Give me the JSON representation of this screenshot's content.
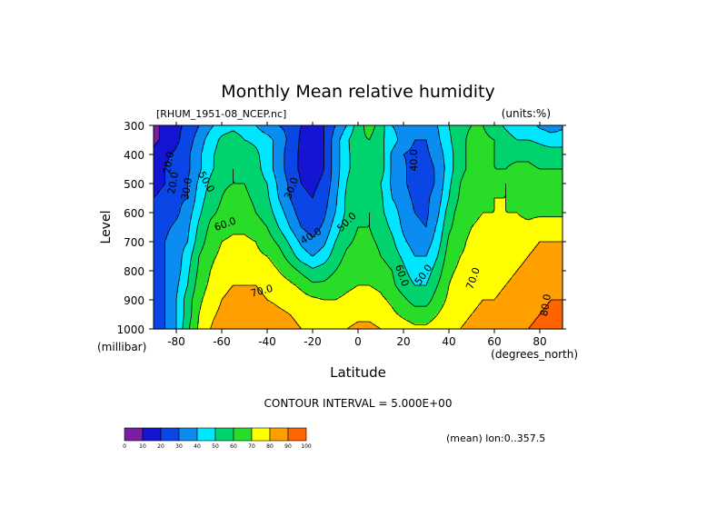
{
  "chart_data": {
    "type": "contour",
    "title": "Monthly Mean relative humidity",
    "dataset_label": "[RHUM_1951-08_NCEP.nc]",
    "units_label": "(units:%)",
    "xlabel": "Latitude",
    "x_units": "(degrees_north)",
    "ylabel": "Level",
    "y_units": "(millibar)",
    "xlim": [
      -90,
      90
    ],
    "ylim": [
      1000,
      300
    ],
    "x_ticks": [
      -80,
      -60,
      -40,
      -20,
      0,
      20,
      40,
      60,
      80
    ],
    "x_tick_labels": [
      "-80",
      "-60",
      "-40",
      "-20",
      "0",
      "20",
      "40",
      "60",
      "80"
    ],
    "y_ticks": [
      300,
      400,
      500,
      600,
      700,
      800,
      900,
      1000
    ],
    "y_tick_labels": [
      "300",
      "400",
      "500",
      "600",
      "700",
      "800",
      "900",
      "1000"
    ],
    "contour_interval_text": "CONTOUR INTERVAL = 5.000E+00",
    "mean_text": "(mean) lon:0..357.5",
    "levels": [
      0,
      10,
      20,
      30,
      40,
      50,
      60,
      70,
      80,
      90,
      100
    ],
    "level_labels": [
      "0",
      "10",
      "20",
      "30",
      "40",
      "50",
      "60",
      "70",
      "80",
      "90",
      "100"
    ],
    "colors": [
      "#7a1ea6",
      "#1414d2",
      "#0a46e6",
      "#0a8cf0",
      "#00e6ff",
      "#00d26e",
      "#28dc28",
      "#ffff00",
      "#ffa000",
      "#ff6400",
      "#ff0000"
    ],
    "contour_labels": [
      "20.0",
      "20.0",
      "30.0",
      "50.0",
      "60.0",
      "70.0",
      "30.0",
      "40.0",
      "50.0",
      "40.0",
      "60.0",
      "50.0",
      "70.0",
      "80.0"
    ],
    "lat": [
      -90,
      -85,
      -80,
      -75,
      -70,
      -65,
      -60,
      -55,
      -50,
      -45,
      -40,
      -35,
      -30,
      -25,
      -20,
      -15,
      -10,
      -5,
      0,
      5,
      10,
      15,
      20,
      25,
      30,
      35,
      40,
      45,
      50,
      55,
      60,
      65,
      70,
      75,
      80,
      85,
      90
    ],
    "lev": [
      300,
      350,
      400,
      450,
      500,
      550,
      600,
      650,
      700,
      750,
      800,
      850,
      900,
      950,
      1000
    ],
    "values": [
      [
        8,
        12,
        18,
        22,
        30,
        38,
        45,
        47,
        45,
        40,
        32,
        30,
        28,
        20,
        18,
        20,
        30,
        40,
        55,
        65,
        55,
        40,
        35,
        32,
        32,
        40,
        50,
        58,
        60,
        60,
        55,
        48,
        42,
        45,
        38,
        35,
        38
      ],
      [
        8,
        12,
        18,
        25,
        35,
        45,
        52,
        55,
        50,
        48,
        45,
        35,
        28,
        18,
        15,
        20,
        35,
        48,
        58,
        60,
        52,
        45,
        35,
        30,
        30,
        38,
        48,
        58,
        62,
        62,
        60,
        55,
        50,
        50,
        48,
        45,
        45
      ],
      [
        12,
        18,
        22,
        28,
        38,
        48,
        54,
        58,
        56,
        52,
        45,
        35,
        25,
        18,
        15,
        20,
        35,
        48,
        55,
        55,
        55,
        38,
        30,
        28,
        28,
        35,
        45,
        58,
        62,
        62,
        60,
        58,
        58,
        58,
        55,
        55,
        55
      ],
      [
        15,
        20,
        25,
        28,
        38,
        48,
        55,
        60,
        58,
        54,
        45,
        35,
        25,
        18,
        15,
        20,
        35,
        48,
        55,
        55,
        55,
        38,
        32,
        25,
        25,
        32,
        45,
        58,
        62,
        62,
        60,
        60,
        62,
        62,
        60,
        60,
        60
      ],
      [
        15,
        20,
        25,
        30,
        42,
        52,
        58,
        60,
        60,
        56,
        50,
        38,
        28,
        20,
        18,
        22,
        36,
        50,
        58,
        56,
        50,
        38,
        32,
        25,
        25,
        32,
        48,
        60,
        65,
        65,
        68,
        70,
        68,
        65,
        65,
        65,
        65
      ],
      [
        20,
        25,
        28,
        30,
        45,
        55,
        60,
        65,
        62,
        58,
        52,
        40,
        30,
        22,
        20,
        25,
        38,
        52,
        58,
        58,
        52,
        40,
        34,
        28,
        28,
        35,
        50,
        62,
        65,
        68,
        70,
        70,
        68,
        66,
        66,
        66,
        66
      ],
      [
        20,
        25,
        28,
        35,
        48,
        58,
        62,
        65,
        65,
        60,
        55,
        45,
        35,
        25,
        22,
        28,
        40,
        52,
        58,
        60,
        52,
        45,
        36,
        30,
        28,
        38,
        55,
        65,
        68,
        70,
        70,
        70,
        70,
        68,
        68,
        68,
        68
      ],
      [
        20,
        28,
        32,
        38,
        52,
        62,
        66,
        68,
        68,
        65,
        60,
        50,
        40,
        30,
        25,
        32,
        45,
        55,
        60,
        60,
        55,
        48,
        38,
        32,
        30,
        42,
        58,
        66,
        70,
        72,
        72,
        72,
        72,
        72,
        75,
        75,
        75
      ],
      [
        20,
        30,
        35,
        40,
        55,
        65,
        70,
        72,
        72,
        70,
        65,
        58,
        48,
        38,
        32,
        38,
        50,
        58,
        62,
        62,
        58,
        52,
        42,
        35,
        35,
        45,
        62,
        68,
        72,
        74,
        74,
        74,
        76,
        78,
        80,
        80,
        80
      ],
      [
        25,
        30,
        35,
        45,
        60,
        68,
        72,
        75,
        75,
        72,
        70,
        65,
        55,
        45,
        40,
        45,
        55,
        62,
        65,
        65,
        60,
        55,
        48,
        40,
        40,
        50,
        65,
        70,
        72,
        75,
        75,
        76,
        78,
        80,
        82,
        82,
        82
      ],
      [
        25,
        30,
        35,
        48,
        62,
        70,
        75,
        78,
        78,
        76,
        75,
        70,
        65,
        58,
        52,
        55,
        60,
        65,
        68,
        68,
        65,
        60,
        52,
        45,
        45,
        55,
        68,
        72,
        75,
        76,
        76,
        78,
        80,
        82,
        85,
        85,
        85
      ],
      [
        25,
        30,
        38,
        50,
        65,
        72,
        78,
        80,
        80,
        80,
        78,
        75,
        72,
        68,
        62,
        62,
        65,
        68,
        70,
        70,
        68,
        62,
        55,
        50,
        50,
        60,
        70,
        75,
        76,
        78,
        78,
        80,
        82,
        85,
        88,
        88,
        88
      ],
      [
        25,
        30,
        40,
        55,
        68,
        75,
        80,
        82,
        82,
        82,
        80,
        78,
        76,
        74,
        72,
        70,
        70,
        72,
        74,
        74,
        72,
        68,
        62,
        56,
        56,
        65,
        72,
        76,
        78,
        80,
        80,
        82,
        84,
        86,
        88,
        90,
        90
      ],
      [
        25,
        30,
        40,
        55,
        70,
        78,
        82,
        85,
        86,
        86,
        85,
        82,
        80,
        78,
        76,
        75,
        74,
        76,
        78,
        78,
        76,
        72,
        68,
        65,
        65,
        70,
        75,
        78,
        80,
        82,
        82,
        84,
        86,
        88,
        90,
        92,
        92
      ],
      [
        25,
        30,
        40,
        58,
        72,
        80,
        85,
        88,
        88,
        88,
        86,
        84,
        82,
        80,
        78,
        78,
        78,
        80,
        82,
        82,
        80,
        78,
        75,
        72,
        72,
        75,
        78,
        80,
        82,
        84,
        84,
        86,
        88,
        90,
        92,
        94,
        94
      ]
    ]
  }
}
